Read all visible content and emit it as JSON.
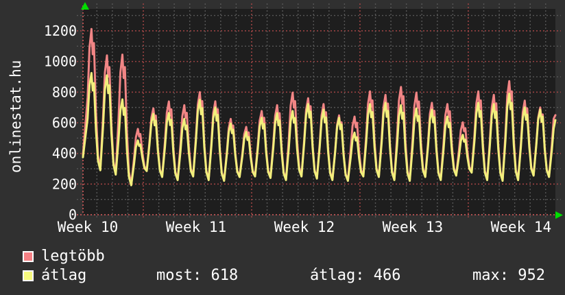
{
  "watermark": "onlinestat.hu",
  "colors": {
    "background": "#303030",
    "plot_background": "#1e1e1e",
    "grid_minor": "#575757",
    "grid_major": "#9c4343",
    "axis_red": "#c25555",
    "arrow_green": "#00dd00",
    "text": "#ffffff",
    "series_legtobb": "#f18585",
    "series_atlag": "#f2ef7c"
  },
  "legend": {
    "items": [
      {
        "label": "legtöbb",
        "color": "#f48084"
      },
      {
        "label": "átlag",
        "color": "#f6f97e"
      }
    ]
  },
  "stats": {
    "most": "most: 618",
    "atlag": "átlag: 466",
    "max": "max: 952"
  },
  "chart_data": {
    "type": "line",
    "title": "",
    "xlabel": "",
    "ylabel": "",
    "grid": true,
    "legend_position": "bottom-left",
    "x_tick_labels": [
      "Week 10",
      "Week 11",
      "Week 12",
      "Week 13",
      "Week 14"
    ],
    "x_label_center_days": [
      0.31,
      7.31,
      14.31,
      21.31,
      28.31
    ],
    "y_tick_values": [
      0,
      200,
      400,
      600,
      800,
      1000,
      1200
    ],
    "y_minor_step": 100,
    "y_minor_max": 1300,
    "ylim": [
      0,
      1343
    ],
    "xlim_days": [
      0,
      30.53
    ],
    "day_grid_start": 0.9,
    "week_grid_days": [
      3.9,
      10.9,
      17.9,
      24.9
    ],
    "series": [
      {
        "name": "legtöbb",
        "color": "#f18585",
        "start_value": 390,
        "end_value": 650,
        "daily_peaks": [
          1212,
          1040,
          1045,
          560,
          694,
          739,
          715,
          800,
          740,
          625,
          573,
          677,
          715,
          797,
          760,
          722,
          648,
          640,
          805,
          782,
          834,
          797,
          730,
          722,
          603,
          805,
          782,
          872,
          745,
          700,
          693
        ],
        "night_mins": [
          295,
          268,
          195,
          290,
          250,
          230,
          255,
          230,
          225,
          250,
          255,
          245,
          230,
          255,
          240,
          230,
          225,
          255,
          250,
          230,
          225,
          250,
          230,
          260,
          280,
          230,
          225,
          230,
          260,
          250,
          250
        ]
      },
      {
        "name": "átlag",
        "color": "#f2ef7c",
        "start_value": 375,
        "end_value": 618,
        "daily_peaks": [
          925,
          910,
          753,
          485,
          658,
          664,
          625,
          750,
          700,
          595,
          540,
          633,
          663,
          677,
          722,
          685,
          633,
          536,
          722,
          730,
          715,
          693,
          685,
          640,
          521,
          730,
          722,
          790,
          700,
          685,
          618
        ],
        "night_mins": [
          290,
          262,
          192,
          285,
          246,
          226,
          250,
          226,
          221,
          246,
          250,
          240,
          226,
          250,
          236,
          226,
          221,
          250,
          246,
          226,
          221,
          246,
          226,
          255,
          275,
          226,
          221,
          226,
          255,
          246,
          246
        ]
      }
    ]
  }
}
